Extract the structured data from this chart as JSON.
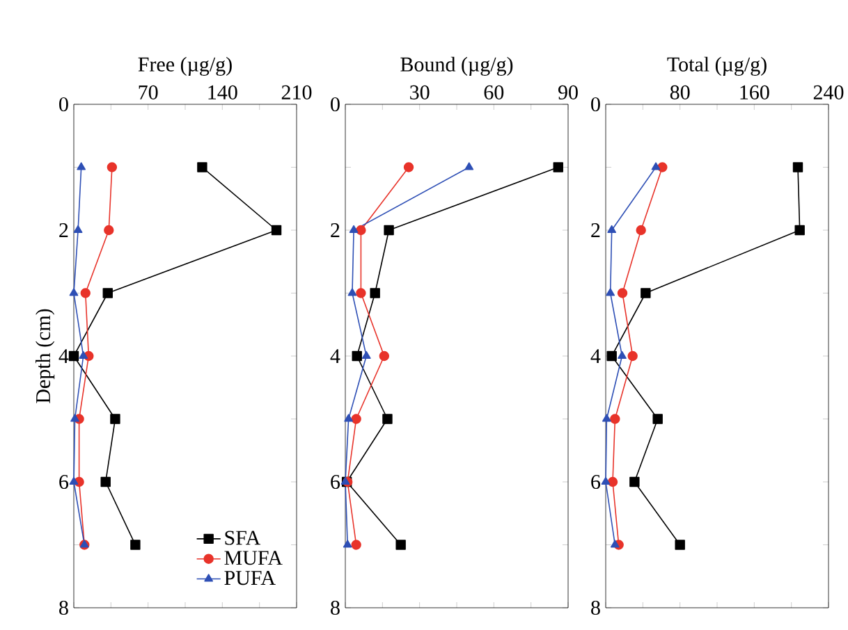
{
  "chart_data": [
    {
      "type": "line",
      "xlabel": "Free (µg/g)",
      "ylabel": "Depth (cm)",
      "xlim": [
        0,
        210
      ],
      "xticks": [
        {
          "value": 0,
          "label": null
        },
        {
          "value": 35,
          "label": null
        },
        70,
        {
          "value": 105,
          "label": null
        },
        140,
        {
          "value": 175,
          "label": null
        },
        210
      ],
      "ylim": [
        8,
        0
      ],
      "yticks": [
        0,
        {
          "value": 1,
          "label": null
        },
        2,
        {
          "value": 3,
          "label": null
        },
        4,
        {
          "value": 5,
          "label": null
        },
        6,
        {
          "value": 7,
          "label": null
        },
        8
      ],
      "legend": "bottom right",
      "series": [
        {
          "name": "SFA",
          "color": "#000000",
          "marker": "square",
          "x": [
            121,
            191,
            32,
            0,
            39,
            30,
            58
          ],
          "values": [
            1,
            2,
            3,
            4,
            5,
            6,
            7
          ]
        },
        {
          "name": "MUFA",
          "color": "#e8332a",
          "marker": "circle",
          "x": [
            36,
            33,
            11,
            14,
            5,
            5,
            10
          ],
          "values": [
            1,
            2,
            3,
            4,
            5,
            6,
            7
          ]
        },
        {
          "name": "PUFA",
          "color": "#2e4fb5",
          "marker": "triangle",
          "x": [
            7,
            4,
            0,
            9,
            1,
            0,
            10
          ],
          "values": [
            1,
            2,
            3,
            4,
            5,
            6,
            7
          ]
        }
      ]
    },
    {
      "type": "line",
      "xlabel": "Bound (µg/g)",
      "xlim": [
        0,
        90
      ],
      "xticks": [
        {
          "value": 0,
          "label": null
        },
        {
          "value": 15,
          "label": null
        },
        30,
        {
          "value": 45,
          "label": null
        },
        60,
        {
          "value": 75,
          "label": null
        },
        90
      ],
      "ylim": [
        8,
        0
      ],
      "yticks": [
        0,
        {
          "value": 1,
          "label": null
        },
        2,
        {
          "value": 3,
          "label": null
        },
        4,
        {
          "value": 5,
          "label": null
        },
        6,
        {
          "value": 7,
          "label": null
        },
        8
      ],
      "series": [
        {
          "color": "#000000",
          "marker": "square",
          "x": [
            86,
            17.6,
            12,
            4.7,
            17,
            0.6,
            22.4
          ],
          "values": [
            1,
            2,
            3,
            4,
            5,
            6,
            7
          ]
        },
        {
          "color": "#e8332a",
          "marker": "circle",
          "x": [
            25.6,
            6.3,
            6.3,
            15.7,
            4.4,
            0.9,
            4.4
          ],
          "values": [
            1,
            2,
            3,
            4,
            5,
            6,
            7
          ]
        },
        {
          "color": "#2e4fb5",
          "marker": "triangle",
          "x": [
            50,
            3.4,
            2.8,
            8.5,
            1.3,
            0,
            0.9
          ],
          "values": [
            1,
            2,
            3,
            4,
            5,
            6,
            7
          ]
        }
      ]
    },
    {
      "type": "line",
      "xlabel": "Total (µg/g)",
      "xlim": [
        0,
        240
      ],
      "xticks": [
        {
          "value": 0,
          "label": null
        },
        {
          "value": 40,
          "label": null
        },
        80,
        {
          "value": 120,
          "label": null
        },
        160,
        {
          "value": 200,
          "label": null
        },
        240
      ],
      "ylim": [
        8,
        0
      ],
      "yticks": [
        0,
        {
          "value": 1,
          "label": null
        },
        2,
        {
          "value": 3,
          "label": null
        },
        4,
        {
          "value": 5,
          "label": null
        },
        6,
        {
          "value": 7,
          "label": null
        },
        8
      ],
      "series": [
        {
          "color": "#000000",
          "marker": "square",
          "x": [
            207,
            209,
            43,
            6.5,
            56,
            31,
            80
          ],
          "values": [
            1,
            2,
            3,
            4,
            5,
            6,
            7
          ]
        },
        {
          "color": "#e8332a",
          "marker": "circle",
          "x": [
            61,
            38,
            18,
            29,
            10,
            7.5,
            14
          ],
          "values": [
            1,
            2,
            3,
            4,
            5,
            6,
            7
          ]
        },
        {
          "color": "#2e4fb5",
          "marker": "triangle",
          "x": [
            54,
            6.5,
            5,
            17.6,
            1,
            0,
            10
          ],
          "values": [
            1,
            2,
            3,
            4,
            5,
            6,
            7
          ]
        }
      ]
    }
  ]
}
